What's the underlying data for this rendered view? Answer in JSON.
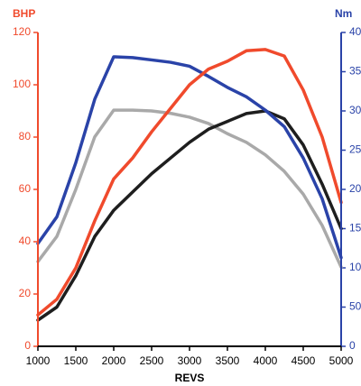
{
  "chart_data": {
    "type": "line",
    "xlabel": "REVS",
    "ylabel": "BHP",
    "y2label": "Nm",
    "x": [
      1000,
      1250,
      1500,
      1750,
      2000,
      2250,
      2500,
      2750,
      3000,
      3250,
      3500,
      3750,
      4000,
      4250,
      4500,
      4750,
      5000
    ],
    "xlim": [
      1000,
      5000
    ],
    "xticks": [
      1000,
      1500,
      2000,
      2500,
      3000,
      3500,
      4000,
      4500,
      5000
    ],
    "ylim": [
      0,
      120
    ],
    "yticks": [
      0,
      20,
      40,
      60,
      80,
      100,
      120
    ],
    "y2lim": [
      0,
      400
    ],
    "y2ticks": [
      0,
      50,
      100,
      150,
      200,
      250,
      300,
      350,
      400
    ],
    "ycolor": "#f04a2c",
    "y2color": "#2a43a8",
    "series": [
      {
        "color": "#a9a9a9",
        "axis": "y2",
        "values": [
          108,
          140,
          200,
          267,
          301,
          301,
          300,
          297,
          292,
          284,
          271,
          260,
          244,
          223,
          194,
          154,
          101
        ]
      },
      {
        "color": "#1e1e1e",
        "axis": "y",
        "values": [
          10,
          15,
          27,
          42,
          52,
          59,
          66,
          72,
          78,
          83,
          86,
          89,
          90,
          87,
          77,
          62,
          45
        ]
      },
      {
        "color": "#2a43a8",
        "axis": "y2",
        "values": [
          131,
          165,
          234,
          315,
          369,
          368,
          365,
          362,
          357,
          344,
          330,
          318,
          301,
          280,
          240,
          188,
          113
        ]
      },
      {
        "color": "#f04a2c",
        "axis": "y",
        "values": [
          12,
          18,
          30,
          48,
          64,
          72,
          82,
          91,
          100,
          106,
          109,
          113,
          113.5,
          111,
          98,
          80,
          55
        ]
      }
    ]
  }
}
